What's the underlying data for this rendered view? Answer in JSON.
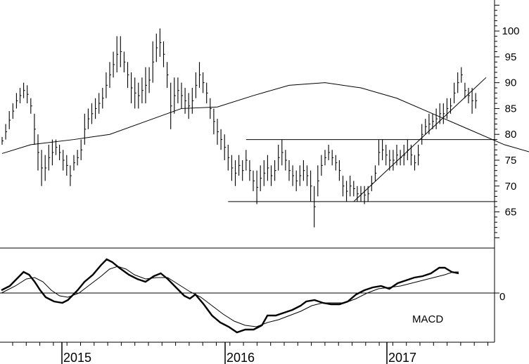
{
  "chart_data": [
    {
      "type": "ohlc",
      "panel": "price",
      "y_axis_position": "right",
      "ylim": [
        58,
        106
      ],
      "y_ticks": [
        "100",
        "95",
        "90",
        "85",
        "80",
        "75",
        "70",
        "65"
      ],
      "y_tick_values": [
        100,
        95,
        90,
        85,
        80,
        75,
        70,
        65
      ],
      "grid": false,
      "x_labels": [
        "2015",
        "2016",
        "2017"
      ],
      "bars": [
        [
          78,
          79.5
        ],
        [
          79,
          82
        ],
        [
          81,
          84.5
        ],
        [
          83,
          86
        ],
        [
          85,
          88
        ],
        [
          86,
          89
        ],
        [
          87,
          90
        ],
        [
          86,
          89.5
        ],
        [
          84,
          87
        ],
        [
          78,
          84
        ],
        [
          73,
          80
        ],
        [
          70,
          77
        ],
        [
          71,
          76
        ],
        [
          73,
          78
        ],
        [
          74,
          79
        ],
        [
          76,
          79
        ],
        [
          75,
          78
        ],
        [
          73,
          77
        ],
        [
          72,
          76
        ],
        [
          70,
          74
        ],
        [
          73,
          76
        ],
        [
          74,
          77
        ],
        [
          75,
          79
        ],
        [
          78,
          84
        ],
        [
          81,
          85
        ],
        [
          82,
          86
        ],
        [
          83,
          87
        ],
        [
          84,
          88
        ],
        [
          85,
          89
        ],
        [
          87,
          92
        ],
        [
          89,
          94
        ],
        [
          91,
          96
        ],
        [
          92,
          99
        ],
        [
          93,
          99
        ],
        [
          92,
          96
        ],
        [
          89,
          94
        ],
        [
          86,
          92
        ],
        [
          85,
          91
        ],
        [
          85,
          90
        ],
        [
          86,
          91
        ],
        [
          86,
          93
        ],
        [
          88,
          93
        ],
        [
          90,
          98
        ],
        [
          94,
          99.5
        ],
        [
          95,
          100.5
        ],
        [
          93,
          98
        ],
        [
          89,
          94
        ],
        [
          81,
          90
        ],
        [
          84,
          91
        ],
        [
          86,
          91
        ],
        [
          85,
          90
        ],
        [
          84,
          89
        ],
        [
          83,
          88
        ],
        [
          84,
          89
        ],
        [
          87,
          92
        ],
        [
          89,
          94
        ],
        [
          88,
          92
        ],
        [
          86,
          90
        ],
        [
          83,
          87
        ],
        [
          80,
          85
        ],
        [
          78,
          83
        ],
        [
          77,
          81
        ],
        [
          75,
          80
        ],
        [
          73,
          78
        ],
        [
          71,
          76
        ],
        [
          70,
          75
        ],
        [
          72,
          76
        ],
        [
          71,
          75
        ],
        [
          73,
          77
        ],
        [
          71,
          75
        ],
        [
          69,
          73
        ],
        [
          66.5,
          73
        ],
        [
          69,
          74
        ],
        [
          70,
          75
        ],
        [
          71,
          76
        ],
        [
          70,
          74
        ],
        [
          71,
          75
        ],
        [
          73,
          78
        ],
        [
          74,
          79
        ],
        [
          73,
          77
        ],
        [
          71,
          75
        ],
        [
          70,
          74
        ],
        [
          69,
          73
        ],
        [
          70,
          74
        ],
        [
          71,
          75
        ],
        [
          70,
          74
        ],
        [
          67,
          73
        ],
        [
          62,
          70
        ],
        [
          68,
          74
        ],
        [
          72,
          76
        ],
        [
          74,
          77
        ],
        [
          75,
          78
        ],
        [
          74,
          77
        ],
        [
          73,
          76
        ],
        [
          71,
          75
        ],
        [
          68,
          72
        ],
        [
          67,
          71
        ],
        [
          68,
          72
        ],
        [
          68,
          71
        ],
        [
          67,
          70
        ],
        [
          67,
          70
        ],
        [
          66.5,
          70
        ],
        [
          67,
          70
        ],
        [
          69,
          72
        ],
        [
          71,
          74
        ],
        [
          74,
          79
        ],
        [
          75,
          79
        ],
        [
          74,
          78
        ],
        [
          73,
          77
        ],
        [
          73,
          77
        ],
        [
          74,
          78
        ],
        [
          74,
          77
        ],
        [
          74,
          78
        ],
        [
          75,
          79
        ],
        [
          74,
          78
        ],
        [
          73,
          76
        ],
        [
          74,
          78
        ],
        [
          78,
          82
        ],
        [
          80,
          83
        ],
        [
          80,
          84
        ],
        [
          81,
          84
        ],
        [
          81,
          85
        ],
        [
          82,
          86
        ],
        [
          82,
          86
        ],
        [
          83,
          87
        ],
        [
          84,
          87
        ],
        [
          86,
          90
        ],
        [
          88,
          92
        ],
        [
          90,
          93
        ],
        [
          87,
          90
        ],
        [
          86,
          89
        ],
        [
          84,
          89
        ],
        [
          85,
          88
        ]
      ],
      "moving_average": [
        [
          0,
          76.3
        ],
        [
          8,
          78
        ],
        [
          20,
          79
        ],
        [
          30,
          80
        ],
        [
          40,
          82.5
        ],
        [
          50,
          85
        ],
        [
          60,
          85.3
        ],
        [
          70,
          87.5
        ],
        [
          80,
          89.5
        ],
        [
          90,
          90
        ],
        [
          100,
          89
        ],
        [
          110,
          87
        ],
        [
          120,
          84
        ],
        [
          130,
          81
        ],
        [
          140,
          78
        ],
        [
          150,
          76
        ],
        [
          160,
          74
        ],
        [
          170,
          72.5
        ],
        [
          180,
          72
        ],
        [
          190,
          72.8
        ],
        [
          200,
          73
        ],
        [
          210,
          73.1
        ],
        [
          220,
          74
        ],
        [
          230,
          75.5
        ],
        [
          240,
          77.2
        ],
        [
          250,
          78.8
        ],
        [
          260,
          79.6
        ]
      ],
      "lines": [
        {
          "name": "support",
          "value": 67
        },
        {
          "name": "resistance",
          "value": 79
        },
        {
          "name": "trendline",
          "from": [
            67,
            67
          ],
          "to": [
            295,
            91
          ]
        }
      ]
    },
    {
      "type": "line",
      "panel": "indicator",
      "label": "MACD",
      "zero_label": "0",
      "ylim": [
        -3.5,
        3.2
      ],
      "series": [
        {
          "name": "MACD",
          "points": [
            [
              0,
              0.2
            ],
            [
              6,
              0.5
            ],
            [
              12,
              1.1
            ],
            [
              16,
              1.5
            ],
            [
              20,
              1.3
            ],
            [
              24,
              0.8
            ],
            [
              28,
              0.2
            ],
            [
              32,
              -0.3
            ],
            [
              38,
              -0.6
            ],
            [
              44,
              -0.7
            ],
            [
              48,
              -0.5
            ],
            [
              55,
              0.2
            ],
            [
              60,
              0.8
            ],
            [
              66,
              1.3
            ],
            [
              72,
              2.0
            ],
            [
              76,
              2.4
            ],
            [
              80,
              2.2
            ],
            [
              85,
              1.8
            ],
            [
              92,
              1.3
            ],
            [
              98,
              1.0
            ],
            [
              104,
              0.8
            ],
            [
              110,
              1.2
            ],
            [
              115,
              1.4
            ],
            [
              120,
              1.0
            ],
            [
              126,
              0.4
            ],
            [
              132,
              -0.2
            ],
            [
              136,
              -0.4
            ],
            [
              140,
              -0.1
            ],
            [
              146,
              -0.8
            ],
            [
              152,
              -1.6
            ],
            [
              158,
              -2.1
            ],
            [
              164,
              -2.4
            ],
            [
              170,
              -2.8
            ],
            [
              176,
              -2.6
            ],
            [
              182,
              -2.6
            ],
            [
              188,
              -2.3
            ],
            [
              192,
              -1.6
            ],
            [
              198,
              -1.6
            ],
            [
              204,
              -1.4
            ],
            [
              210,
              -1.2
            ],
            [
              216,
              -0.9
            ],
            [
              220,
              -0.6
            ],
            [
              226,
              -0.5
            ],
            [
              232,
              -0.7
            ],
            [
              238,
              -0.8
            ],
            [
              244,
              -0.8
            ],
            [
              250,
              -0.6
            ],
            [
              256,
              -0.1
            ],
            [
              262,
              0.2
            ],
            [
              268,
              0.4
            ],
            [
              274,
              0.5
            ],
            [
              280,
              0.3
            ],
            [
              286,
              0.7
            ],
            [
              292,
              0.9
            ],
            [
              298,
              1.1
            ],
            [
              304,
              1.2
            ],
            [
              310,
              1.4
            ],
            [
              316,
              1.8
            ],
            [
              320,
              1.8
            ],
            [
              325,
              1.5
            ],
            [
              330,
              1.4
            ]
          ]
        },
        {
          "name": "Signal",
          "points": [
            [
              0,
              0.0
            ],
            [
              10,
              0.5
            ],
            [
              18,
              1.0
            ],
            [
              24,
              1.1
            ],
            [
              30,
              0.8
            ],
            [
              36,
              0.2
            ],
            [
              42,
              -0.2
            ],
            [
              48,
              -0.3
            ],
            [
              56,
              0.0
            ],
            [
              64,
              0.6
            ],
            [
              72,
              1.2
            ],
            [
              78,
              1.7
            ],
            [
              84,
              1.9
            ],
            [
              90,
              1.7
            ],
            [
              96,
              1.3
            ],
            [
              104,
              1.0
            ],
            [
              112,
              1.1
            ],
            [
              120,
              1.1
            ],
            [
              128,
              0.6
            ],
            [
              136,
              0.1
            ],
            [
              144,
              -0.3
            ],
            [
              152,
              -0.9
            ],
            [
              160,
              -1.5
            ],
            [
              168,
              -2.0
            ],
            [
              176,
              -2.3
            ],
            [
              184,
              -2.4
            ],
            [
              192,
              -2.1
            ],
            [
              200,
              -1.9
            ],
            [
              208,
              -1.6
            ],
            [
              216,
              -1.3
            ],
            [
              224,
              -0.9
            ],
            [
              232,
              -0.7
            ],
            [
              240,
              -0.7
            ],
            [
              248,
              -0.7
            ],
            [
              256,
              -0.4
            ],
            [
              264,
              0.0
            ],
            [
              272,
              0.3
            ],
            [
              280,
              0.4
            ],
            [
              288,
              0.5
            ],
            [
              296,
              0.7
            ],
            [
              304,
              0.9
            ],
            [
              312,
              1.1
            ],
            [
              320,
              1.3
            ],
            [
              326,
              1.5
            ],
            [
              330,
              1.5
            ]
          ]
        }
      ]
    }
  ]
}
